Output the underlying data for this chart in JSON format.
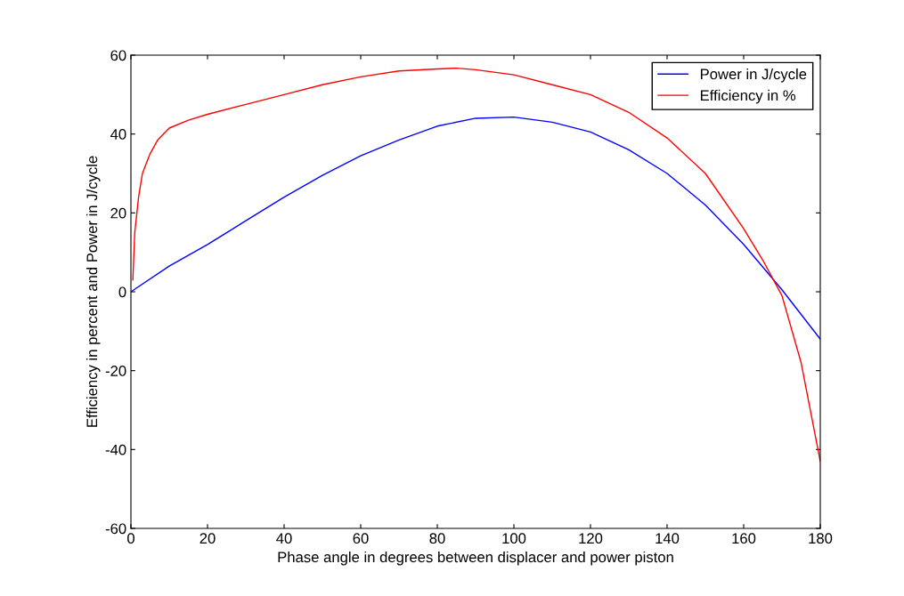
{
  "chart_data": {
    "type": "line",
    "xlabel": "Phase angle in degrees between displacer and power piston",
    "ylabel": "Efficiency in percent and Power in J/cycle",
    "xlim": [
      0,
      180
    ],
    "xticks": [
      0,
      20,
      40,
      60,
      80,
      100,
      120,
      140,
      160,
      180
    ],
    "ylim": [
      -60,
      60
    ],
    "yticks": [
      -60,
      -40,
      -20,
      0,
      20,
      40,
      60
    ],
    "grid": false,
    "legend": "top right",
    "line_style": "solid",
    "marker": "none",
    "series": [
      {
        "name": "Power in J/cycle",
        "color": "#0000ff",
        "x": [
          0,
          10,
          20,
          30,
          40,
          50,
          60,
          70,
          80,
          90,
          100,
          110,
          120,
          130,
          140,
          150,
          160,
          170,
          180
        ],
        "values": [
          0,
          6.5,
          12,
          18,
          24,
          29.5,
          34.5,
          38.5,
          42,
          44,
          44.3,
          43,
          40.5,
          36,
          30,
          22,
          12,
          0.5,
          -12
        ]
      },
      {
        "name": "Efficiency in %",
        "color": "#ff0000",
        "x": [
          0.5,
          1,
          2,
          3,
          5,
          7,
          10,
          15,
          20,
          30,
          40,
          50,
          60,
          70,
          80,
          85,
          90,
          100,
          110,
          120,
          130,
          140,
          150,
          160,
          165,
          170,
          175,
          180
        ],
        "values": [
          3,
          15,
          24,
          30,
          35,
          38.5,
          41.5,
          43.5,
          45,
          47.5,
          50,
          52.5,
          54.5,
          56,
          56.5,
          56.7,
          56.3,
          55,
          52.5,
          50,
          45.5,
          39,
          30,
          16,
          8,
          -1,
          -18,
          -43
        ]
      }
    ]
  }
}
